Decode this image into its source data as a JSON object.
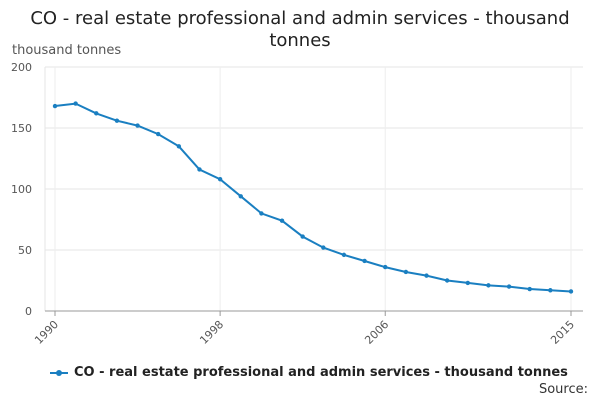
{
  "chart_data": {
    "type": "line",
    "title": "CO - real estate professional and admin services - thousand tonnes",
    "ylabel": "thousand tonnes",
    "xlabel": "",
    "x": [
      1990,
      1991,
      1992,
      1993,
      1994,
      1995,
      1996,
      1997,
      1998,
      1999,
      2000,
      2001,
      2002,
      2003,
      2004,
      2005,
      2006,
      2007,
      2008,
      2009,
      2010,
      2011,
      2012,
      2013,
      2014,
      2015
    ],
    "series": [
      {
        "name": "CO - real estate professional and admin services - thousand tonnes",
        "values": [
          168,
          170,
          162,
          156,
          152,
          145,
          135,
          116,
          108,
          94,
          80,
          74,
          61,
          52,
          46,
          41,
          36,
          32,
          29,
          25,
          23,
          21,
          20,
          18,
          17,
          16
        ]
      }
    ],
    "xlim": [
      1990,
      2015
    ],
    "ylim": [
      0,
      200
    ],
    "x_ticks": [
      "1990",
      "1998",
      "2006",
      "2015"
    ],
    "y_ticks": [
      "0",
      "50",
      "100",
      "150",
      "200"
    ],
    "grid": true,
    "legend_position": "bottom",
    "color": "#1a7fc1"
  },
  "footer": {
    "source": "Source:"
  }
}
